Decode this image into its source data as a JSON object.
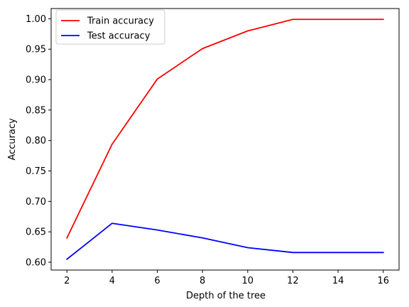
{
  "chart_data": {
    "type": "line",
    "x": [
      2,
      4,
      6,
      8,
      10,
      12,
      14,
      16
    ],
    "series": [
      {
        "name": "Train accuracy",
        "color": "#ff0000",
        "values": [
          0.64,
          0.794,
          0.901,
          0.951,
          0.98,
          0.999,
          0.999,
          0.999
        ]
      },
      {
        "name": "Test accuracy",
        "color": "#0000ff",
        "values": [
          0.605,
          0.664,
          0.653,
          0.64,
          0.624,
          0.616,
          0.616,
          0.616
        ]
      }
    ],
    "title": "",
    "xlabel": "Depth of the tree",
    "ylabel": "Accuracy",
    "xlim": [
      1.3,
      16.7
    ],
    "ylim": [
      0.5872,
      1.0168
    ],
    "xticks": [
      2,
      4,
      6,
      8,
      10,
      12,
      14,
      16
    ],
    "xtick_labels": [
      "2",
      "4",
      "6",
      "8",
      "10",
      "12",
      "14",
      "16"
    ],
    "yticks": [
      0.6,
      0.65,
      0.7,
      0.75,
      0.8,
      0.85,
      0.9,
      0.95,
      1.0
    ],
    "ytick_labels": [
      "0.60",
      "0.65",
      "0.70",
      "0.75",
      "0.80",
      "0.85",
      "0.90",
      "0.95",
      "1.00"
    ],
    "grid": false,
    "legend_position": "upper-left"
  }
}
